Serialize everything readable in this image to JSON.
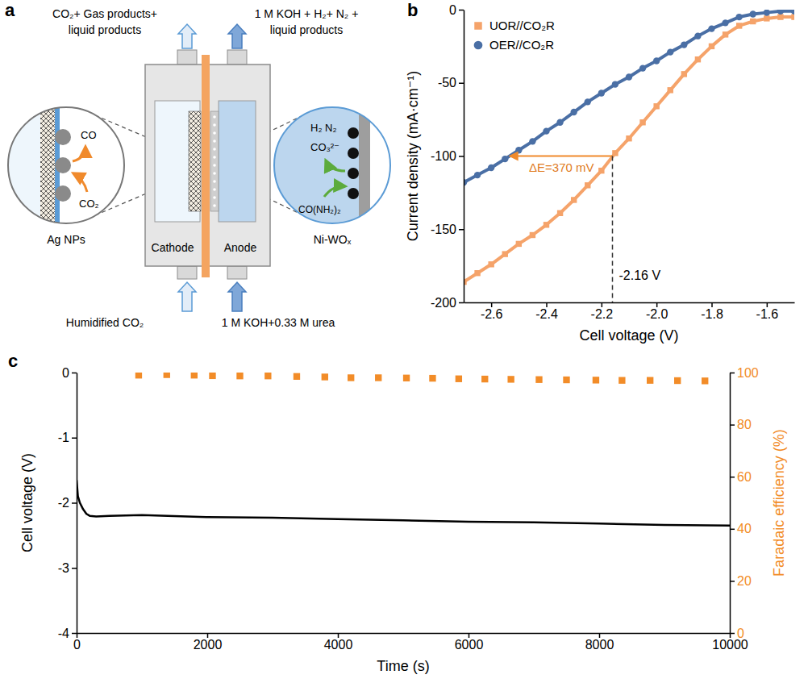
{
  "diagram": {
    "panel_label": "a",
    "outlet_cathode": [
      "CO₂+ Gas products+",
      "liquid products"
    ],
    "outlet_anode": [
      "1 M KOH + H₂+ N₂ +",
      "liquid products"
    ],
    "cathode_zoom": {
      "labels": [
        "CO",
        "CO₂"
      ],
      "caption": "Ag NPs"
    },
    "anode_zoom": {
      "labels": [
        "H₂ N₂",
        "CO₃²⁻",
        "CO(NH₂)₂"
      ],
      "caption": "Ni-WOₓ"
    },
    "cathode": "Cathode",
    "anode": "Anode",
    "inlet_cathode": "Humidified CO₂",
    "inlet_anode": "1 M KOH+0.33 M urea"
  },
  "chart_data": [
    {
      "type": "line",
      "panel_label": "b",
      "x_label": "Cell voltage (V)",
      "y_label": "Current density (mA·cm⁻¹)",
      "x": [
        -2.7,
        -2.65,
        -2.6,
        -2.55,
        -2.5,
        -2.45,
        -2.4,
        -2.35,
        -2.3,
        -2.25,
        -2.2,
        -2.15,
        -2.1,
        -2.05,
        -2.0,
        -1.95,
        -1.9,
        -1.85,
        -1.8,
        -1.75,
        -1.7,
        -1.65,
        -1.6,
        -1.55,
        -1.5
      ],
      "series": [
        {
          "name": "UOR//CO₂R",
          "color": "#f5a36a",
          "marker": "square",
          "values": [
            -186,
            -180,
            -174,
            -167,
            -160,
            -154,
            -147,
            -139,
            -130,
            -120,
            -110,
            -98,
            -88,
            -77,
            -66,
            -55,
            -44,
            -34,
            -25,
            -17,
            -11,
            -8,
            -6,
            -5,
            -5
          ]
        },
        {
          "name": "OER//CO₂R",
          "color": "#4a6fa5",
          "marker": "circle",
          "values": [
            -118,
            -113,
            -108,
            -102,
            -96,
            -90,
            -83,
            -77,
            -70,
            -63,
            -57,
            -51,
            -46,
            -40,
            -35,
            -29,
            -24,
            -18,
            -13,
            -9,
            -5,
            -3,
            -2,
            -1,
            -1
          ]
        }
      ],
      "xlim": [
        -2.7,
        -1.5
      ],
      "ylim": [
        -200,
        0
      ],
      "xticks": [
        -2.6,
        -2.4,
        -2.2,
        {
          "value": -2,
          "label": "-2.0"
        },
        -1.8,
        -1.6
      ],
      "yticks": [
        -200,
        -150,
        -100,
        -50,
        0
      ],
      "legend": "upper left",
      "annotations": [
        {
          "text": "ΔE=370 mV",
          "x": [
            -2.53,
            -2.16
          ],
          "y": -100
        },
        {
          "text": "-2.16 V",
          "x": -2.16,
          "y": -100
        }
      ]
    },
    {
      "type": "line",
      "panel_label": "c",
      "x_label": "Time (s)",
      "y_label": "Cell voltage (V)",
      "y2_label": "Faradaic efficiency (%)",
      "series": [
        {
          "color": "#000000",
          "line_style": "solid",
          "x": [
            0,
            20,
            50,
            100,
            150,
            200,
            300,
            500,
            1000,
            2000,
            3000,
            4000,
            5000,
            6000,
            7000,
            8000,
            9000,
            10000
          ],
          "values": [
            -1.65,
            -1.9,
            -2.0,
            -2.1,
            -2.17,
            -2.2,
            -2.21,
            -2.2,
            -2.19,
            -2.22,
            -2.23,
            -2.25,
            -2.27,
            -2.29,
            -2.3,
            -2.32,
            -2.34,
            -2.35
          ]
        },
        {
          "color": "#f28c28",
          "type": "scatter",
          "marker": "square",
          "axis": "y2",
          "x": [
            950,
            1380,
            1800,
            2080,
            2500,
            2930,
            3370,
            3800,
            4200,
            4620,
            5050,
            5450,
            5850,
            6250,
            6650,
            7080,
            7500,
            7950,
            8350,
            8780,
            9200,
            9620
          ],
          "values": [
            99,
            99.2,
            99,
            98.8,
            98.7,
            98.7,
            98.5,
            98.3,
            98,
            98,
            97.9,
            97.8,
            97.6,
            97.5,
            97.4,
            97.3,
            97.2,
            97.1,
            97,
            97,
            96.9,
            96.8
          ]
        }
      ],
      "xlim": [
        0,
        10000
      ],
      "ylim": [
        -4,
        0
      ],
      "y2lim": [
        0,
        100
      ],
      "xticks": [
        0,
        2000,
        4000,
        6000,
        8000,
        10000
      ],
      "yticks": [
        -4,
        -3,
        -2,
        -1,
        0
      ],
      "y2ticks": [
        0,
        20,
        40,
        60,
        80,
        100
      ]
    }
  ]
}
